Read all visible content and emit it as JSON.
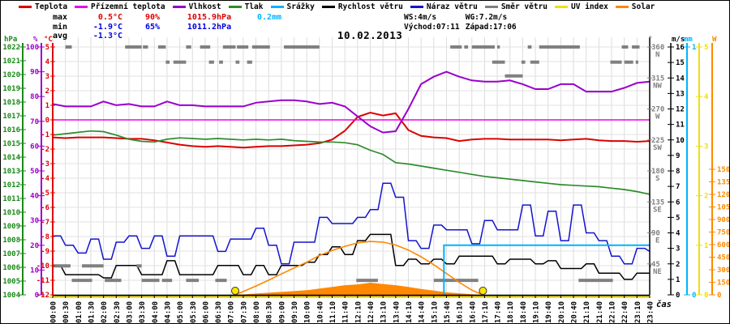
{
  "date": "10.02.2013",
  "legend": {
    "items": [
      {
        "label": "Teplota",
        "color": "#dd0000"
      },
      {
        "label": "Přízemní teplota",
        "color": "#ee00ee"
      },
      {
        "label": "Vlhkost",
        "color": "#9900cc"
      },
      {
        "label": "Tlak",
        "color": "#2e8b2e"
      },
      {
        "label": "Srážky",
        "color": "#00b4ff"
      },
      {
        "label": "Rychlost větru",
        "color": "#000000"
      },
      {
        "label": "Náraz větru",
        "color": "#1414cc"
      },
      {
        "label": "Směr větru",
        "color": "#808080"
      },
      {
        "label": "UV index",
        "color": "#f0e000"
      },
      {
        "label": "Solar",
        "color": "#ff8800"
      }
    ]
  },
  "stats": {
    "max_label": "max",
    "max_temp": "0.5°C",
    "max_hum": "90%",
    "max_pres": "1015.9hPa",
    "max_rain": "0.2mm",
    "min_label": "min",
    "min_temp": "-1.9°C",
    "min_hum": "65%",
    "min_pres": "1011.2hPa",
    "avg_label": "avg",
    "avg_temp": "-1.3°C"
  },
  "wind_stats": {
    "ws": "WS:4m/s",
    "wg": "WG:7.2m/s",
    "sunrise": "Východ:07:11",
    "sunset": "Západ:17:06"
  },
  "chart_data": {
    "type": "line",
    "title": "10.02.2013",
    "xlabel": "čas",
    "x_labels": [
      "00:00",
      "00:30",
      "01:00",
      "01:30",
      "02:00",
      "02:30",
      "03:00",
      "03:30",
      "04:00",
      "04:30",
      "05:00",
      "05:30",
      "06:00",
      "06:30",
      "07:00",
      "07:30",
      "08:00",
      "08:30",
      "09:00",
      "09:30",
      "10:00",
      "10:40",
      "11:10",
      "11:40",
      "12:10",
      "12:40",
      "13:10",
      "13:40",
      "14:10",
      "14:40",
      "15:10",
      "15:40",
      "16:10",
      "16:40",
      "17:10",
      "17:40",
      "18:10",
      "18:40",
      "19:10",
      "19:40",
      "20:10",
      "20:40",
      "21:10",
      "21:40",
      "22:10",
      "22:40",
      "23:10",
      "23:40"
    ],
    "axes": {
      "left": [
        {
          "name": "hPa",
          "color": "#1a8a1a",
          "min": 1004,
          "max": 1022,
          "step": 1
        },
        {
          "name": "%",
          "color": "#9900cc",
          "min": 0,
          "max": 100,
          "step": 10
        },
        {
          "name": "°C",
          "color": "#dd0000",
          "min": -12,
          "max": 5,
          "step": 1
        }
      ],
      "right": [
        {
          "name": "°",
          "color": "#808080",
          "labels": [
            [
              "360",
              "N"
            ],
            [
              "315",
              "NW"
            ],
            [
              "270",
              "W"
            ],
            [
              "225",
              "SW"
            ],
            [
              "180",
              "S"
            ],
            [
              "135",
              "SE"
            ],
            [
              "90",
              "E"
            ],
            [
              "45",
              "NE"
            ]
          ]
        },
        {
          "name": "m/s",
          "color": "#000000",
          "min": 0,
          "max": 16,
          "step": 1
        },
        {
          "name": "mm",
          "color": "#00b4ff",
          "min": 0,
          "max": 1,
          "labels": [
            0,
            1
          ]
        },
        {
          "name": "UV",
          "color": "#f0e000",
          "min": 0,
          "max": 5,
          "step": 1
        },
        {
          "name": "W",
          "color": "#ff8800",
          "min": 0,
          "label_max": 1500,
          "label_step": 150
        }
      ]
    },
    "series": [
      {
        "name": "Teplota",
        "axis": "temp",
        "color": "#dd0000",
        "width": 2,
        "values": [
          -1.2,
          -1.25,
          -1.2,
          -1.2,
          -1.2,
          -1.25,
          -1.3,
          -1.3,
          -1.4,
          -1.55,
          -1.7,
          -1.8,
          -1.85,
          -1.8,
          -1.85,
          -1.9,
          -1.85,
          -1.8,
          -1.8,
          -1.75,
          -1.7,
          -1.6,
          -1.35,
          -0.75,
          0.2,
          0.5,
          0.3,
          0.45,
          -0.7,
          -1.1,
          -1.2,
          -1.25,
          -1.45,
          -1.35,
          -1.3,
          -1.3,
          -1.35,
          -1.35,
          -1.35,
          -1.35,
          -1.4,
          -1.35,
          -1.3,
          -1.4,
          -1.45,
          -1.45,
          -1.5,
          -1.45
        ]
      },
      {
        "name": "Přízemní teplota",
        "axis": "temp",
        "color": "#ee00ee",
        "width": 1.5,
        "flat": 0
      },
      {
        "name": "Vlhkost",
        "axis": "pct",
        "color": "#9900cc",
        "width": 2,
        "values": [
          77,
          76,
          76,
          76,
          78,
          76.5,
          77,
          76,
          76,
          78,
          76.5,
          76.5,
          76,
          76,
          76,
          76,
          77.5,
          78,
          78.5,
          78.5,
          78,
          77,
          77.5,
          76,
          72,
          68,
          65.5,
          66,
          75,
          85,
          88,
          90,
          88,
          86.5,
          86,
          86,
          86.5,
          85,
          83,
          83,
          85,
          85,
          82,
          82,
          82,
          83.5,
          85.5,
          86
        ]
      },
      {
        "name": "Tlak",
        "axis": "pres",
        "color": "#2e8b2e",
        "width": 1.7,
        "values": [
          1015.6,
          1015.7,
          1015.8,
          1015.9,
          1015.85,
          1015.6,
          1015.3,
          1015.15,
          1015.1,
          1015.3,
          1015.4,
          1015.35,
          1015.3,
          1015.35,
          1015.3,
          1015.25,
          1015.3,
          1015.25,
          1015.3,
          1015.2,
          1015.15,
          1015.1,
          1015.1,
          1015.05,
          1014.9,
          1014.5,
          1014.2,
          1013.6,
          1013.5,
          1013.35,
          1013.2,
          1013.05,
          1012.9,
          1012.75,
          1012.6,
          1012.5,
          1012.4,
          1012.3,
          1012.2,
          1012.1,
          1012.0,
          1011.95,
          1011.9,
          1011.85,
          1011.75,
          1011.65,
          1011.5,
          1011.3
        ]
      },
      {
        "name": "Rychlost větru",
        "axis": "wind",
        "color": "#000000",
        "width": 1.5,
        "step": true,
        "values": [
          1.9,
          1.3,
          1.3,
          1.3,
          1.1,
          1.9,
          1.9,
          1.3,
          1.3,
          2.2,
          1.3,
          1.3,
          1.3,
          1.9,
          1.9,
          1.3,
          1.9,
          1.3,
          1.9,
          1.9,
          2.1,
          2.6,
          3.1,
          2.6,
          3.5,
          3.9,
          3.9,
          1.9,
          2.3,
          2.0,
          2.3,
          2.0,
          2.5,
          2.5,
          2.5,
          2.0,
          2.3,
          2.3,
          2.0,
          2.2,
          1.7,
          1.7,
          2.0,
          1.4,
          1.4,
          1.0,
          1.4,
          1.4
        ]
      },
      {
        "name": "Náraz větru",
        "axis": "wind",
        "color": "#1414cc",
        "width": 1.5,
        "step": true,
        "values": [
          3.8,
          3.2,
          2.7,
          3.6,
          2.3,
          3.4,
          3.8,
          3.0,
          3.8,
          2.5,
          3.8,
          3.8,
          3.8,
          2.8,
          3.6,
          3.6,
          4.3,
          3.2,
          2.0,
          3.4,
          3.4,
          5.0,
          4.6,
          4.6,
          5.0,
          5.5,
          7.2,
          6.3,
          3.5,
          3.0,
          4.5,
          4.2,
          4.2,
          3.3,
          4.8,
          4.2,
          4.2,
          5.8,
          3.8,
          5.4,
          3.5,
          5.8,
          4.0,
          3.5,
          2.5,
          2.0,
          3.0,
          2.8
        ]
      }
    ],
    "uv_index": {
      "name": "UV index",
      "color": "#f0e000",
      "flat": 0
    },
    "solar_actual": {
      "name": "Solar",
      "color": "#ff8800",
      "values": [
        0,
        0,
        0,
        0,
        0,
        0,
        0,
        0,
        0,
        0,
        0,
        0,
        0,
        0,
        0,
        5,
        15,
        25,
        35,
        45,
        55,
        75,
        95,
        115,
        125,
        145,
        130,
        115,
        95,
        70,
        50,
        30,
        18,
        8,
        0,
        0,
        0,
        0,
        0,
        0,
        0,
        0,
        0,
        0,
        0,
        0,
        0,
        0
      ]
    },
    "solar_clear_sky": {
      "color": "#ff8800",
      "points": [
        [
          14.37,
          0
        ],
        [
          15,
          40
        ],
        [
          16,
          105
        ],
        [
          17,
          175
        ],
        [
          18,
          250
        ],
        [
          19,
          320
        ],
        [
          20,
          390
        ],
        [
          21,
          470
        ],
        [
          22,
          530
        ],
        [
          23,
          580
        ],
        [
          24,
          620
        ],
        [
          25,
          638
        ],
        [
          26,
          630
        ],
        [
          27,
          595
        ],
        [
          28,
          535
        ],
        [
          29,
          455
        ],
        [
          30,
          360
        ],
        [
          31,
          255
        ],
        [
          32,
          150
        ],
        [
          33,
          55
        ],
        [
          33.87,
          0
        ]
      ]
    },
    "rain_cumulative": {
      "color": "#00b4ff",
      "before_mm": 0,
      "jump_i": 30.8,
      "after_mm": 0.2
    },
    "wind_direction_segments": {
      "color": "#808080",
      "segments": [
        [
          0,
          1.4,
          42
        ],
        [
          1.5,
          3.1,
          21
        ],
        [
          2.3,
          4.0,
          42
        ],
        [
          4.1,
          5.4,
          21
        ],
        [
          6.6,
          7.0,
          42
        ],
        [
          7.0,
          8.4,
          21
        ],
        [
          8.6,
          9.4,
          21
        ],
        [
          10.5,
          11.5,
          21
        ],
        [
          12.8,
          13.7,
          21
        ],
        [
          23.9,
          25.6,
          21
        ],
        [
          30.0,
          33.5,
          21
        ],
        [
          41.4,
          44.1,
          21
        ],
        [
          47.1,
          47.9,
          42
        ],
        [
          1.0,
          1.5,
          360
        ],
        [
          5.7,
          7.0,
          360
        ],
        [
          7.1,
          7.5,
          360
        ],
        [
          8.3,
          8.9,
          360
        ],
        [
          10.5,
          10.9,
          360
        ],
        [
          11.6,
          12.4,
          360
        ],
        [
          13.4,
          14.4,
          360
        ],
        [
          14.5,
          15.4,
          360
        ],
        [
          15.7,
          17.1,
          360
        ],
        [
          18.2,
          21.0,
          360
        ],
        [
          31.3,
          32.2,
          360
        ],
        [
          32.4,
          32.7,
          360
        ],
        [
          33.0,
          34.8,
          360
        ],
        [
          35.0,
          35.2,
          360
        ],
        [
          37.4,
          37.7,
          360
        ],
        [
          38.3,
          41.5,
          360
        ],
        [
          44.8,
          45.3,
          360
        ],
        [
          45.6,
          46.2,
          360
        ],
        [
          8.9,
          9.2,
          338
        ],
        [
          9.5,
          10.5,
          338
        ],
        [
          12.3,
          12.7,
          338
        ],
        [
          13.1,
          13.4,
          338
        ],
        [
          14.4,
          14.7,
          338
        ],
        [
          15.3,
          15.7,
          338
        ],
        [
          34.6,
          35.6,
          338
        ],
        [
          36.9,
          37.2,
          338
        ],
        [
          37.6,
          38.3,
          338
        ],
        [
          43.9,
          44.8,
          338
        ],
        [
          45.0,
          45.7,
          338
        ],
        [
          45.9,
          46.1,
          338
        ],
        [
          35.6,
          37.0,
          318
        ]
      ]
    },
    "sun_markers": {
      "color": "#ffe600",
      "sunrise_i": 14.37,
      "sunset_i": 33.87
    }
  }
}
